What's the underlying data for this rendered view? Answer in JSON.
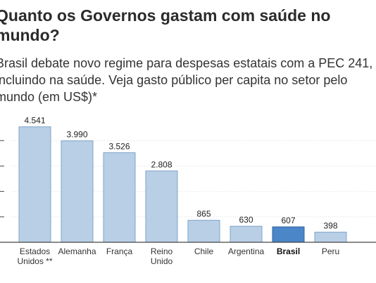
{
  "chart_data": {
    "type": "bar",
    "title": "Quanto os Governos gastam com saúde no\nmundo?",
    "subtitle": "Brasil debate novo regime para despesas estatais com a PEC 241,\nincluindo na saúde. Veja gasto público per capita no setor pelo\nmundo (em US$)*",
    "categories": [
      "Estados\nUnidos **",
      "Alemanha",
      "França",
      "Reino\nUnido",
      "Chile",
      "Argentina",
      "Brasil",
      "Peru"
    ],
    "values": [
      4541,
      3990,
      3526,
      2808,
      865,
      630,
      607,
      398
    ],
    "value_labels": [
      "4.541",
      "3.990",
      "3.526",
      "2.808",
      "865",
      "630",
      "607",
      "398"
    ],
    "highlight": "Brasil",
    "ylim": [
      0,
      5000
    ],
    "grid": true,
    "xlabel": "",
    "ylabel": "",
    "colors": {
      "bar": "#b8cfe6",
      "bar_border": "#7fa3c8",
      "highlight": "#4a86c8",
      "highlight_border": "#2f64a0",
      "grid": "#dddddd",
      "axis": "#444444"
    }
  }
}
